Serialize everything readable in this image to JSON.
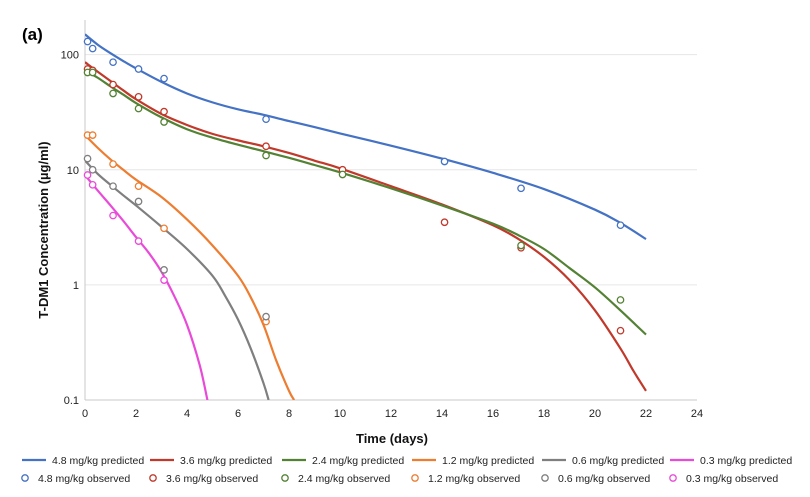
{
  "chart_data": {
    "type": "line",
    "panel_label": "(a)",
    "title": "",
    "xlabel": "Time (days)",
    "ylabel": "T-DM1 Concentration (µg/ml)",
    "xlim": [
      0,
      24
    ],
    "ylim": [
      0.1,
      200
    ],
    "y_scale": "log",
    "grid": true,
    "legend_position": "bottom",
    "xticks": [
      "0",
      "2",
      "4",
      "6",
      "8",
      "10",
      "12",
      "14",
      "16",
      "18",
      "20",
      "22",
      "24"
    ],
    "yticks": [
      {
        "value": 100,
        "label": "100"
      },
      {
        "value": 10,
        "label": "10"
      },
      {
        "value": 1,
        "label": "1"
      },
      {
        "value": 0.1,
        "label": "0.1"
      }
    ],
    "series": [
      {
        "name": "4.8 mg/kg predicted",
        "kind": "predicted",
        "color": "#4472C4",
        "points": [
          [
            0,
            150
          ],
          [
            0.5,
            122
          ],
          [
            1,
            103
          ],
          [
            1.5,
            88
          ],
          [
            2,
            76
          ],
          [
            3,
            58
          ],
          [
            4,
            46
          ],
          [
            5,
            38.5
          ],
          [
            6,
            33.5
          ],
          [
            7,
            30
          ],
          [
            8,
            26.5
          ],
          [
            9,
            23.5
          ],
          [
            10,
            20.7
          ],
          [
            12,
            16.2
          ],
          [
            14,
            12.5
          ],
          [
            16,
            9.4
          ],
          [
            18,
            6.8
          ],
          [
            20,
            4.5
          ],
          [
            21,
            3.45
          ],
          [
            22,
            2.5
          ]
        ]
      },
      {
        "name": "3.6 mg/kg predicted",
        "kind": "predicted",
        "color": "#C0392B",
        "points": [
          [
            0,
            86
          ],
          [
            0.5,
            71
          ],
          [
            1,
            59
          ],
          [
            1.5,
            49
          ],
          [
            2,
            41
          ],
          [
            3,
            30.5
          ],
          [
            4,
            24.5
          ],
          [
            5,
            20.5
          ],
          [
            6,
            18
          ],
          [
            7,
            16
          ],
          [
            8,
            14
          ],
          [
            9,
            12
          ],
          [
            10,
            10.3
          ],
          [
            12,
            7.2
          ],
          [
            14,
            5
          ],
          [
            16,
            3.3
          ],
          [
            17,
            2.5
          ],
          [
            18,
            1.75
          ],
          [
            19,
            1.1
          ],
          [
            20,
            0.6
          ],
          [
            21,
            0.28
          ],
          [
            21.5,
            0.18
          ],
          [
            22,
            0.12
          ]
        ]
      },
      {
        "name": "2.4 mg/kg predicted",
        "kind": "predicted",
        "color": "#548235",
        "points": [
          [
            0,
            73
          ],
          [
            0.5,
            63
          ],
          [
            1,
            53
          ],
          [
            1.5,
            45
          ],
          [
            2,
            38
          ],
          [
            3,
            28.5
          ],
          [
            4,
            22.5
          ],
          [
            5,
            19
          ],
          [
            6,
            16.5
          ],
          [
            7,
            14.5
          ],
          [
            8,
            12.7
          ],
          [
            9,
            11
          ],
          [
            10,
            9.5
          ],
          [
            12,
            6.9
          ],
          [
            14,
            4.9
          ],
          [
            16,
            3.4
          ],
          [
            17,
            2.7
          ],
          [
            18,
            2.05
          ],
          [
            19,
            1.4
          ],
          [
            20,
            0.95
          ],
          [
            21,
            0.6
          ],
          [
            22,
            0.37
          ]
        ]
      },
      {
        "name": "1.2 mg/kg predicted",
        "kind": "predicted",
        "color": "#ED7D31",
        "points": [
          [
            0,
            20
          ],
          [
            0.5,
            15.5
          ],
          [
            1,
            12.3
          ],
          [
            1.5,
            10
          ],
          [
            2,
            8.2
          ],
          [
            3,
            5.8
          ],
          [
            4,
            3.7
          ],
          [
            5,
            2.2
          ],
          [
            6,
            1.2
          ],
          [
            6.5,
            0.78
          ],
          [
            7,
            0.45
          ],
          [
            7.5,
            0.22
          ],
          [
            8,
            0.12
          ],
          [
            8.2,
            0.1
          ]
        ]
      },
      {
        "name": "0.6 mg/kg predicted",
        "kind": "predicted",
        "color": "#7F7F7F",
        "points": [
          [
            0,
            12
          ],
          [
            0.5,
            9.2
          ],
          [
            1,
            7.4
          ],
          [
            1.5,
            6
          ],
          [
            2,
            4.9
          ],
          [
            3,
            3.2
          ],
          [
            4,
            2.05
          ],
          [
            5,
            1.2
          ],
          [
            5.5,
            0.8
          ],
          [
            6,
            0.5
          ],
          [
            6.5,
            0.28
          ],
          [
            7,
            0.14
          ],
          [
            7.2,
            0.1
          ]
        ]
      },
      {
        "name": "0.3 mg/kg predicted",
        "kind": "predicted",
        "color": "#E94BD9",
        "points": [
          [
            0,
            9
          ],
          [
            0.5,
            6.6
          ],
          [
            1,
            4.9
          ],
          [
            1.5,
            3.6
          ],
          [
            2,
            2.6
          ],
          [
            2.5,
            1.9
          ],
          [
            3,
            1.3
          ],
          [
            3.5,
            0.8
          ],
          [
            4,
            0.45
          ],
          [
            4.5,
            0.2
          ],
          [
            4.8,
            0.1
          ]
        ]
      },
      {
        "name": "4.8 mg/kg observed",
        "kind": "observed",
        "color": "#4472C4",
        "points": [
          [
            0.1,
            130
          ],
          [
            0.3,
            113
          ],
          [
            1.1,
            86
          ],
          [
            2.1,
            75
          ],
          [
            3.1,
            62
          ],
          [
            7.1,
            27.5
          ],
          [
            14.1,
            11.8
          ],
          [
            17.1,
            6.9
          ],
          [
            21,
            3.3
          ]
        ]
      },
      {
        "name": "3.6 mg/kg observed",
        "kind": "observed",
        "color": "#C0392B",
        "points": [
          [
            0.1,
            75
          ],
          [
            0.3,
            73
          ],
          [
            1.1,
            55
          ],
          [
            2.1,
            43
          ],
          [
            3.1,
            32
          ],
          [
            7.1,
            16
          ],
          [
            10.1,
            10
          ],
          [
            14.1,
            3.5
          ],
          [
            17.1,
            2.1
          ],
          [
            21,
            0.4
          ]
        ]
      },
      {
        "name": "2.4 mg/kg observed",
        "kind": "observed",
        "color": "#548235",
        "points": [
          [
            0.1,
            70
          ],
          [
            0.3,
            70
          ],
          [
            1.1,
            46
          ],
          [
            2.1,
            34
          ],
          [
            3.1,
            26
          ],
          [
            7.1,
            13.3
          ],
          [
            10.1,
            9.1
          ],
          [
            17.1,
            2.2
          ],
          [
            21,
            0.74
          ]
        ]
      },
      {
        "name": "1.2 mg/kg observed",
        "kind": "observed",
        "color": "#ED7D31",
        "points": [
          [
            0.1,
            20
          ],
          [
            0.3,
            20
          ],
          [
            1.1,
            11.2
          ],
          [
            2.1,
            7.2
          ],
          [
            3.1,
            3.1
          ],
          [
            7.1,
            0.48
          ]
        ]
      },
      {
        "name": "0.6 mg/kg observed",
        "kind": "observed",
        "color": "#7F7F7F",
        "points": [
          [
            0.1,
            12.5
          ],
          [
            0.3,
            10
          ],
          [
            1.1,
            7.2
          ],
          [
            2.1,
            5.3
          ],
          [
            3.1,
            1.35
          ],
          [
            7.1,
            0.53
          ]
        ]
      },
      {
        "name": "0.3 mg/kg observed",
        "kind": "observed",
        "color": "#E94BD9",
        "points": [
          [
            0.1,
            9
          ],
          [
            0.3,
            7.4
          ],
          [
            1.1,
            4
          ],
          [
            2.1,
            2.4
          ],
          [
            3.1,
            1.1
          ]
        ]
      }
    ]
  }
}
